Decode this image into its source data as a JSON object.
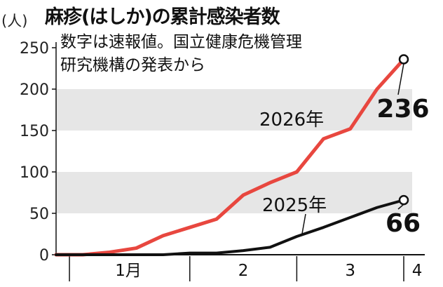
{
  "chart_data": {
    "type": "line",
    "title": "麻疹(はしか)の累計感染者数",
    "subtitle": "数字は速報値。国立健康危機管理\n研究機構の発表から",
    "unit": "(人)",
    "ylim": [
      0,
      250
    ],
    "yticks": [
      0,
      50,
      100,
      150,
      200,
      250
    ],
    "ytick_labels": [
      "0",
      "50",
      "100",
      "150",
      "200",
      "250"
    ],
    "grid": "alternating bands",
    "x_range": [
      0,
      13
    ],
    "x_ticks": [
      {
        "x": 0.5,
        "label": ""
      },
      {
        "x": 5.0,
        "label": ""
      },
      {
        "x": 9.0,
        "label": ""
      },
      {
        "x": 13.0,
        "label": ""
      }
    ],
    "x_month_labels": [
      {
        "x": 2.7,
        "label": "1月"
      },
      {
        "x": 7.0,
        "label": "2"
      },
      {
        "x": 11.0,
        "label": "3"
      },
      {
        "x": 13.5,
        "label": "4"
      }
    ],
    "series": [
      {
        "name": "2026年",
        "color": "#e8473f",
        "x": [
          0,
          1,
          2,
          3,
          4,
          5,
          6,
          7,
          8,
          9,
          10,
          11,
          12,
          13
        ],
        "values": [
          0,
          0,
          3,
          8,
          23,
          33,
          43,
          72,
          87,
          100,
          140,
          152,
          200,
          236
        ],
        "end_label": "236"
      },
      {
        "name": "2025年",
        "color": "#111111",
        "x": [
          0,
          1,
          2,
          3,
          4,
          5,
          6,
          7,
          8,
          9,
          10,
          11,
          12,
          13
        ],
        "values": [
          0,
          0,
          0,
          0,
          0,
          2,
          2,
          5,
          9,
          22,
          33,
          45,
          57,
          66
        ],
        "end_label": "66"
      }
    ]
  }
}
